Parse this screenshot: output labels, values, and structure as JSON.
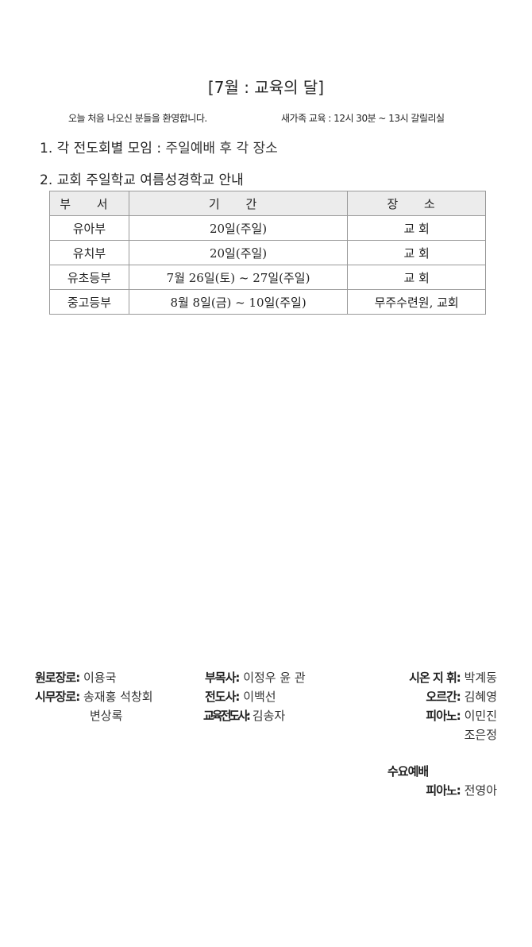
{
  "title": "[7월 : 교육의 달]",
  "welcome": "오늘 처음 나오신 분들을 환영합니다.",
  "new_family": "새가족 교육 : 12시 30분 ~ 13시  갈릴리실",
  "items": [
    {
      "label": "1. 각 전도회별 모임 :",
      "value": " 주일예배 후 각 장소"
    },
    {
      "label": "2. 교회 주일학교 여름성경학교 안내",
      "value": ""
    }
  ],
  "table": {
    "headers": [
      "부 서",
      "기    간",
      "장 소"
    ],
    "rows": [
      [
        "유아부",
        "20일(주일)",
        "교 회"
      ],
      [
        "유치부",
        "20일(주일)",
        "교 회"
      ],
      [
        "유초등부",
        "7월 26일(토) ~ 27일(주일)",
        "교 회"
      ],
      [
        "중고등부",
        "8월 8일(금) ~ 10일(주일)",
        "무주수련원, 교회"
      ]
    ]
  },
  "staff": {
    "elder_emeritus": {
      "label": "원로장로:",
      "value": "이용국"
    },
    "elders": {
      "label": "시무장로:",
      "value": "송재홍 석창회",
      "value2": "변상록"
    },
    "associate_pastor": {
      "label": "부목사:",
      "value": "이정우 윤  관"
    },
    "evangelist": {
      "label": "전도사:",
      "value": "이백선"
    },
    "edu_evangelist": {
      "label": "교육전도사:",
      "value": "김송자"
    },
    "conductor": {
      "label": "시온 지  휘:",
      "value": "박계동"
    },
    "organ": {
      "label": "오르간:",
      "value": "김혜영"
    },
    "piano": {
      "label": "피아노:",
      "value": "이민진",
      "value2": "조은정"
    },
    "wednesday_title": "수요예배",
    "wed_piano": {
      "label": "피아노:",
      "value": "전영아"
    }
  }
}
